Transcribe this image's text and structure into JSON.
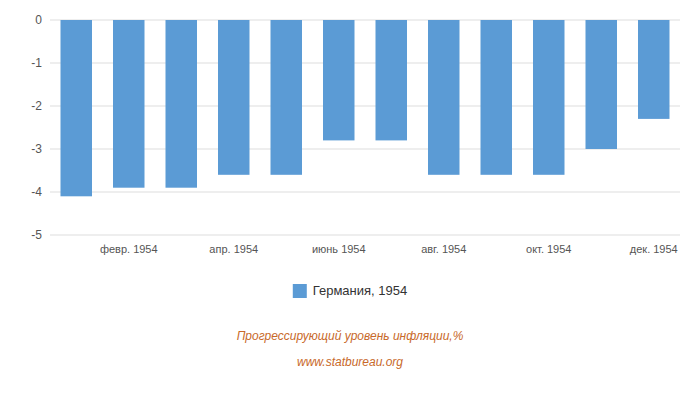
{
  "chart_data": {
    "type": "bar",
    "title": "Прогрессирующий уровень инфляции,%",
    "subtitle": "www.statbureau.org",
    "categories": [
      null,
      "февр. 1954",
      null,
      "апр. 1954",
      null,
      "июнь 1954",
      null,
      "авг. 1954",
      null,
      "окт. 1954",
      null,
      "дек. 1954"
    ],
    "series": [
      {
        "name": "Германия, 1954",
        "color": "#5b9bd5",
        "values": [
          -4.1,
          -3.9,
          -3.9,
          -3.6,
          -3.6,
          -2.8,
          -2.8,
          -3.6,
          -3.6,
          -3.6,
          -3.0,
          -2.3
        ]
      }
    ],
    "ylim": [
      -5,
      0
    ],
    "yticks": [
      0,
      -1,
      -2,
      -3,
      -4,
      -5
    ],
    "grid": true,
    "legend": "bottom"
  }
}
